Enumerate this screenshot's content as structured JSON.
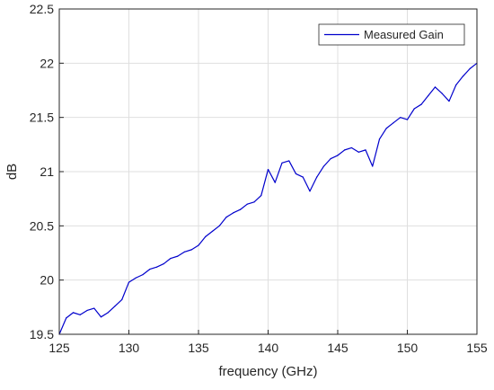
{
  "chart_data": {
    "type": "line",
    "title": "",
    "xlabel": "frequency (GHz)",
    "ylabel": "dB",
    "xlim": [
      125,
      155
    ],
    "ylim": [
      19.5,
      22.5
    ],
    "x_ticks": [
      "125",
      "130",
      "135",
      "140",
      "145",
      "150",
      "155"
    ],
    "y_ticks": [
      "19.5",
      "20",
      "20.5",
      "21",
      "21.5",
      "22",
      "22.5"
    ],
    "grid": true,
    "legend_position": "top-right",
    "series": [
      {
        "name": "Measured Gain",
        "color": "#0000cc",
        "x": [
          125.0,
          125.5,
          126.0,
          126.5,
          127.0,
          127.5,
          128.0,
          128.5,
          129.0,
          129.5,
          130.0,
          130.5,
          131.0,
          131.5,
          132.0,
          132.5,
          133.0,
          133.5,
          134.0,
          134.5,
          135.0,
          135.5,
          136.0,
          136.5,
          137.0,
          137.5,
          138.0,
          138.5,
          139.0,
          139.5,
          140.0,
          140.5,
          141.0,
          141.5,
          142.0,
          142.5,
          143.0,
          143.5,
          144.0,
          144.5,
          145.0,
          145.5,
          146.0,
          146.5,
          147.0,
          147.5,
          148.0,
          148.5,
          149.0,
          149.5,
          150.0,
          150.5,
          151.0,
          151.5,
          152.0,
          152.5,
          153.0,
          153.5,
          154.0,
          154.5,
          155.0
        ],
        "y": [
          19.5,
          19.65,
          19.7,
          19.68,
          19.72,
          19.74,
          19.66,
          19.7,
          19.76,
          19.82,
          19.98,
          20.02,
          20.05,
          20.1,
          20.12,
          20.15,
          20.2,
          20.22,
          20.26,
          20.28,
          20.32,
          20.4,
          20.45,
          20.5,
          20.58,
          20.62,
          20.65,
          20.7,
          20.72,
          20.78,
          21.02,
          20.9,
          21.08,
          21.1,
          20.98,
          20.95,
          20.82,
          20.95,
          21.05,
          21.12,
          21.15,
          21.2,
          21.22,
          21.18,
          21.2,
          21.05,
          21.3,
          21.4,
          21.45,
          21.5,
          21.48,
          21.58,
          21.62,
          21.7,
          21.78,
          21.72,
          21.65,
          21.8,
          21.88,
          21.95,
          22.0
        ]
      }
    ]
  }
}
